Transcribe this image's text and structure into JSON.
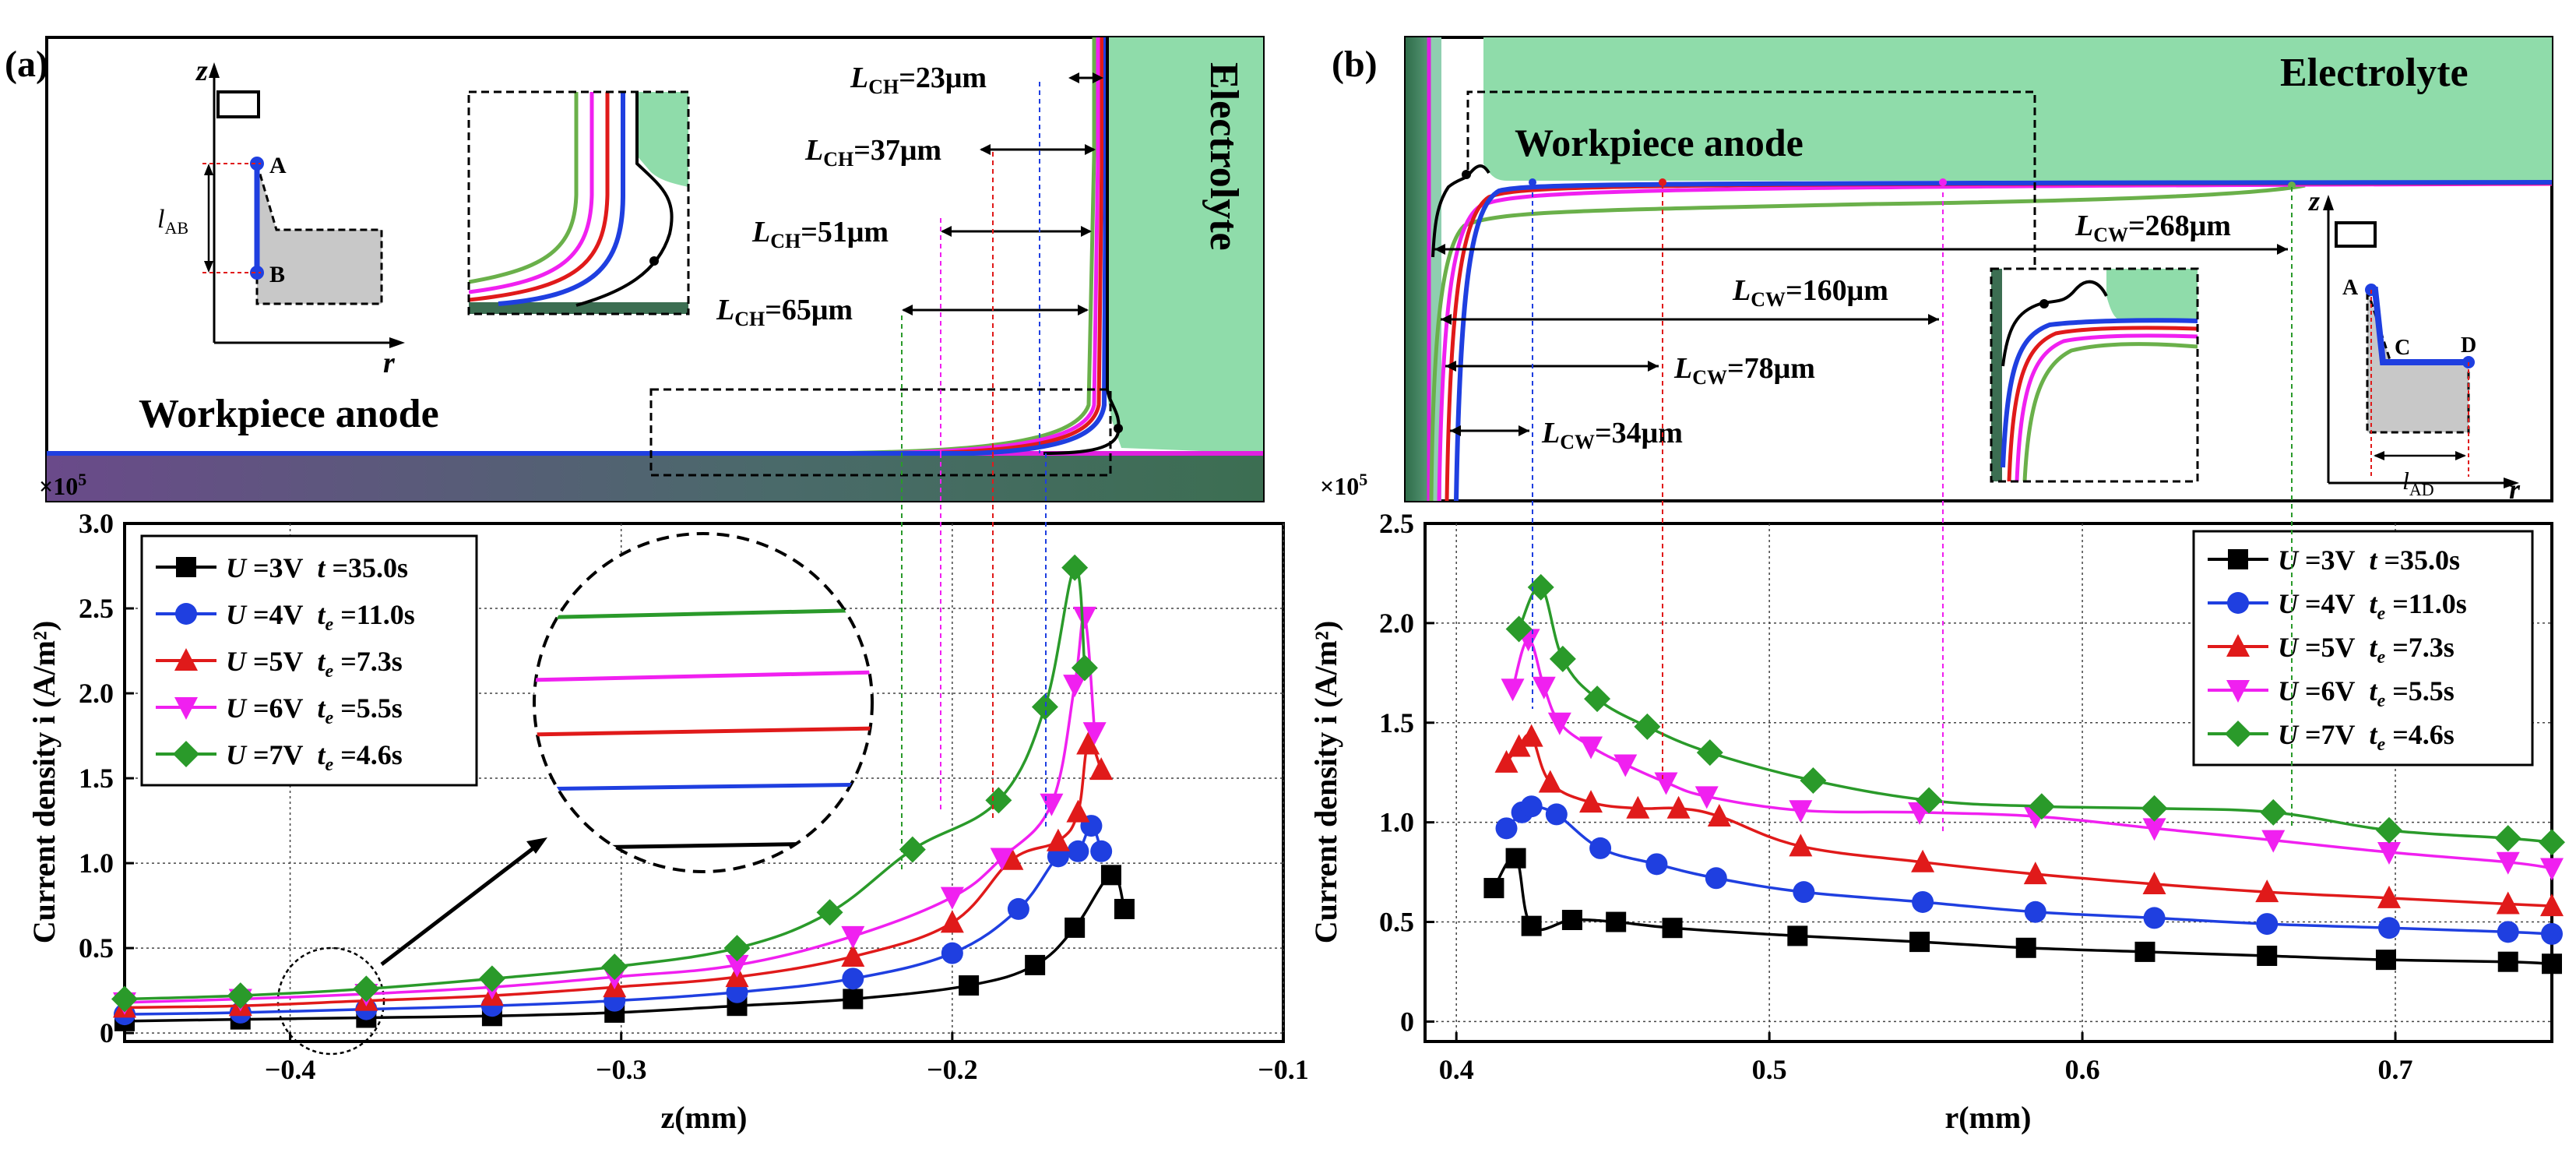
{
  "panel_a": {
    "tag": "(a)",
    "electrolyte": "Electrolyte",
    "anode": "Workpiece anode",
    "scale": "×10",
    "scale_exp": "5",
    "schema": {
      "z": "z",
      "r": "r",
      "A": "A",
      "B": "B",
      "l": "l",
      "l_sub": "AB"
    },
    "dims": [
      {
        "L": "L",
        "sub": "CH",
        "val": "=23μm"
      },
      {
        "L": "L",
        "sub": "CH",
        "val": "=37μm"
      },
      {
        "L": "L",
        "sub": "CH",
        "val": "=51μm"
      },
      {
        "L": "L",
        "sub": "CH",
        "val": "=65μm"
      }
    ]
  },
  "panel_b": {
    "tag": "(b)",
    "electrolyte": "Electrolyte",
    "anode": "Workpiece anode",
    "scale": "×10",
    "scale_exp": "5",
    "schema": {
      "z": "z",
      "r": "r",
      "A": "A",
      "C": "C",
      "D": "D",
      "l": "l",
      "l_sub": "AD"
    },
    "dims": [
      {
        "L": "L",
        "sub": "CW",
        "val": "=268μm"
      },
      {
        "L": "L",
        "sub": "CW",
        "val": "=160μm"
      },
      {
        "L": "L",
        "sub": "CW",
        "val": "=78μm"
      },
      {
        "L": "L",
        "sub": "CW",
        "val": "=34μm"
      }
    ]
  },
  "legend": [
    {
      "u": "U",
      "uval": " =3V",
      "t": "t",
      "tsub": "",
      "tval": " =35.0s"
    },
    {
      "u": "U",
      "uval": " =4V",
      "t": "t",
      "tsub": "e",
      "tval": " =11.0s"
    },
    {
      "u": "U",
      "uval": " =5V",
      "t": "t",
      "tsub": "e",
      "tval": " =7.3s"
    },
    {
      "u": "U",
      "uval": " =6V",
      "t": "t",
      "tsub": "e",
      "tval": " =5.5s"
    },
    {
      "u": "U",
      "uval": " =7V",
      "t": "t",
      "tsub": "e",
      "tval": " =4.6s"
    }
  ],
  "colors": {
    "s3V": "#000000",
    "s4V": "#1f3fe0",
    "s5V": "#e01a1a",
    "s6V": "#f020f0",
    "s7V": "#2a9a2a",
    "electrolyte": "#8fdcaa",
    "anode_dark": "#3c6e52",
    "anode_purple": "#6a4a8a"
  },
  "chart_data": [
    {
      "type": "line",
      "panel": "a",
      "xlabel": "z(mm)",
      "ylabel": "Current density i (A/m²)",
      "xlim": [
        -0.45,
        -0.1
      ],
      "ylim": [
        -0.05,
        3.0
      ],
      "xticks": [
        -0.4,
        -0.3,
        -0.2,
        -0.1
      ],
      "xtick_labels": [
        "−0.4",
        "−0.3",
        "−0.2",
        "−0.1"
      ],
      "yticks": [
        0,
        0.5,
        1.0,
        1.5,
        2.0,
        2.5,
        3.0
      ],
      "ytick_labels": [
        "0",
        "0.5",
        "1.0",
        "1.5",
        "2.0",
        "2.5",
        "3.0"
      ],
      "series": [
        {
          "name": "U=3V t=35.0s",
          "color": "#000000",
          "marker": "square",
          "x": [
            -0.45,
            -0.415,
            -0.377,
            -0.339,
            -0.302,
            -0.265,
            -0.23,
            -0.195,
            -0.175,
            -0.163,
            -0.152,
            -0.148
          ],
          "y": [
            0.07,
            0.08,
            0.09,
            0.1,
            0.12,
            0.16,
            0.2,
            0.28,
            0.4,
            0.62,
            0.93,
            0.73
          ]
        },
        {
          "name": "U=4V te=11.0s",
          "color": "#1f3fe0",
          "marker": "circle",
          "x": [
            -0.45,
            -0.415,
            -0.377,
            -0.339,
            -0.302,
            -0.265,
            -0.23,
            -0.2,
            -0.18,
            -0.168,
            -0.162,
            -0.158,
            -0.155
          ],
          "y": [
            0.11,
            0.12,
            0.14,
            0.16,
            0.19,
            0.24,
            0.32,
            0.47,
            0.73,
            1.04,
            1.07,
            1.22,
            1.07
          ]
        },
        {
          "name": "U=5V te=7.3s",
          "color": "#e01a1a",
          "marker": "triangle-up",
          "x": [
            -0.45,
            -0.415,
            -0.377,
            -0.339,
            -0.302,
            -0.265,
            -0.23,
            -0.2,
            -0.182,
            -0.168,
            -0.162,
            -0.159,
            -0.155
          ],
          "y": [
            0.15,
            0.16,
            0.19,
            0.22,
            0.27,
            0.33,
            0.45,
            0.65,
            1.02,
            1.13,
            1.3,
            1.7,
            1.55
          ]
        },
        {
          "name": "U=6V te=5.5s",
          "color": "#f020f0",
          "marker": "triangle-down",
          "x": [
            -0.45,
            -0.415,
            -0.377,
            -0.339,
            -0.302,
            -0.265,
            -0.23,
            -0.2,
            -0.185,
            -0.17,
            -0.163,
            -0.16,
            -0.157
          ],
          "y": [
            0.18,
            0.2,
            0.23,
            0.27,
            0.33,
            0.4,
            0.57,
            0.8,
            1.03,
            1.35,
            2.05,
            2.45,
            1.77
          ]
        },
        {
          "name": "U=7V te=4.6s",
          "color": "#2a9a2a",
          "marker": "diamond",
          "x": [
            -0.45,
            -0.415,
            -0.377,
            -0.339,
            -0.302,
            -0.265,
            -0.237,
            -0.212,
            -0.186,
            -0.172,
            -0.163,
            -0.16
          ],
          "y": [
            0.2,
            0.22,
            0.26,
            0.32,
            0.39,
            0.5,
            0.71,
            1.08,
            1.37,
            1.92,
            2.74,
            2.15
          ]
        }
      ]
    },
    {
      "type": "line",
      "panel": "b",
      "xlabel": "r(mm)",
      "ylabel": "Current density i (A/m²)",
      "xlim": [
        0.39,
        0.75
      ],
      "ylim": [
        -0.1,
        2.5
      ],
      "xticks": [
        0.4,
        0.5,
        0.6,
        0.7
      ],
      "xtick_labels": [
        "0.4",
        "0.5",
        "0.6",
        "0.7"
      ],
      "yticks": [
        0,
        0.5,
        1.0,
        1.5,
        2.0,
        2.5
      ],
      "ytick_labels": [
        "0",
        "0.5",
        "1.0",
        "1.5",
        "2.0",
        "2.5"
      ],
      "series": [
        {
          "name": "U=3V t=35.0s",
          "color": "#000000",
          "marker": "square",
          "x": [
            0.412,
            0.419,
            0.424,
            0.437,
            0.451,
            0.469,
            0.509,
            0.548,
            0.582,
            0.62,
            0.659,
            0.697,
            0.736,
            0.75
          ],
          "y": [
            0.67,
            0.82,
            0.48,
            0.51,
            0.5,
            0.47,
            0.43,
            0.4,
            0.37,
            0.35,
            0.33,
            0.31,
            0.3,
            0.29
          ]
        },
        {
          "name": "U=4V te=11.0s",
          "color": "#1f3fe0",
          "marker": "circle",
          "x": [
            0.416,
            0.421,
            0.424,
            0.432,
            0.446,
            0.464,
            0.483,
            0.511,
            0.549,
            0.585,
            0.623,
            0.659,
            0.698,
            0.736,
            0.75
          ],
          "y": [
            0.97,
            1.05,
            1.08,
            1.04,
            0.87,
            0.79,
            0.72,
            0.65,
            0.6,
            0.55,
            0.52,
            0.49,
            0.47,
            0.45,
            0.44
          ]
        },
        {
          "name": "U=5V te=7.3s",
          "color": "#e01a1a",
          "marker": "triangle-up",
          "x": [
            0.416,
            0.42,
            0.424,
            0.43,
            0.443,
            0.458,
            0.471,
            0.484,
            0.51,
            0.549,
            0.585,
            0.623,
            0.659,
            0.698,
            0.736,
            0.75
          ],
          "y": [
            1.3,
            1.38,
            1.43,
            1.2,
            1.1,
            1.07,
            1.07,
            1.03,
            0.88,
            0.8,
            0.74,
            0.69,
            0.65,
            0.62,
            0.59,
            0.58
          ]
        },
        {
          "name": "U=6V te=5.5s",
          "color": "#f020f0",
          "marker": "triangle-down",
          "x": [
            0.418,
            0.423,
            0.428,
            0.433,
            0.443,
            0.454,
            0.467,
            0.48,
            0.51,
            0.548,
            0.585,
            0.623,
            0.661,
            0.698,
            0.736,
            0.75
          ],
          "y": [
            1.67,
            1.92,
            1.68,
            1.5,
            1.38,
            1.29,
            1.2,
            1.13,
            1.06,
            1.05,
            1.03,
            0.97,
            0.91,
            0.85,
            0.8,
            0.77
          ]
        },
        {
          "name": "U=7V te=4.6s",
          "color": "#2a9a2a",
          "marker": "diamond",
          "x": [
            0.42,
            0.427,
            0.434,
            0.445,
            0.461,
            0.481,
            0.514,
            0.551,
            0.587,
            0.623,
            0.661,
            0.698,
            0.736,
            0.75
          ],
          "y": [
            1.97,
            2.18,
            1.82,
            1.62,
            1.48,
            1.35,
            1.21,
            1.11,
            1.08,
            1.07,
            1.05,
            0.96,
            0.92,
            0.9
          ]
        }
      ]
    }
  ]
}
